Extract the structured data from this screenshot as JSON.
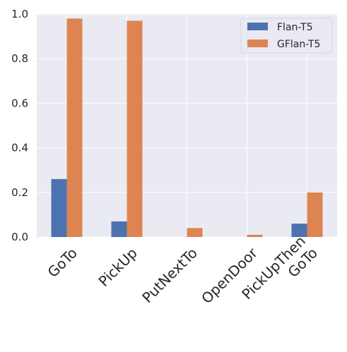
{
  "chart_data": {
    "type": "bar",
    "categories": [
      "GoTo",
      "PickUp",
      "PutNextTo",
      "OpenDoor",
      "PickUpThen\nGoTo"
    ],
    "series": [
      {
        "name": "Flan-T5",
        "color": "#4c72b0",
        "values": [
          0.26,
          0.07,
          0.0,
          0.0,
          0.06
        ]
      },
      {
        "name": "GFlan-T5",
        "color": "#dd8452",
        "values": [
          0.98,
          0.97,
          0.04,
          0.01,
          0.2
        ]
      }
    ],
    "ylim": [
      0,
      1.0
    ],
    "yticks": [
      "0.0",
      "0.2",
      "0.4",
      "0.6",
      "0.8",
      "1.0"
    ],
    "grid": true,
    "background": "#eaeaf2",
    "legend_position": "top-right",
    "title": "",
    "xlabel": "",
    "ylabel": ""
  }
}
